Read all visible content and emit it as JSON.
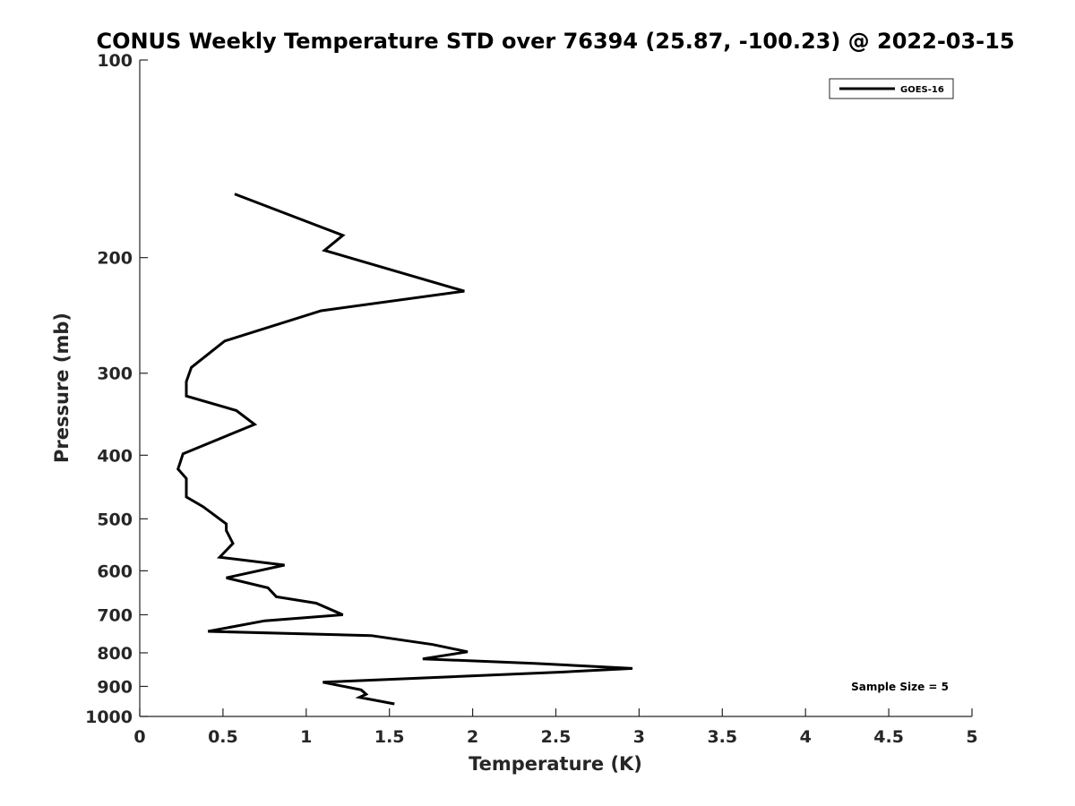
{
  "chart_data": {
    "type": "line",
    "title": "CONUS Weekly Temperature STD over 76394 (25.87, -100.23) @ 2022-03-15",
    "xlabel": "Temperature (K)",
    "ylabel": "Pressure (mb)",
    "xlim": [
      0,
      5
    ],
    "ylim": [
      1000,
      100
    ],
    "y_scale": "log",
    "y_reversed": true,
    "grid": false,
    "legend_position": "top-right",
    "x_ticks": [
      0,
      0.5,
      1,
      1.5,
      2,
      2.5,
      3,
      3.5,
      4,
      4.5,
      5
    ],
    "x_tick_labels": [
      "0",
      "0.5",
      "1",
      "1.5",
      "2",
      "2.5",
      "3",
      "3.5",
      "4",
      "4.5",
      "5"
    ],
    "y_ticks": [
      100,
      200,
      300,
      400,
      500,
      600,
      700,
      800,
      900,
      1000
    ],
    "y_tick_labels": [
      "100",
      "200",
      "300",
      "400",
      "500",
      "600",
      "700",
      "800",
      "900",
      "1000"
    ],
    "series": [
      {
        "name": "GOES-16",
        "color": "#000000",
        "x": [
          0.57,
          1.22,
          1.11,
          1.95,
          1.09,
          0.51,
          0.31,
          0.28,
          0.28,
          0.58,
          0.69,
          0.26,
          0.23,
          0.28,
          0.28,
          0.38,
          0.52,
          0.52,
          0.56,
          0.48,
          0.87,
          0.52,
          0.77,
          0.82,
          1.06,
          1.22,
          0.75,
          0.41,
          1.39,
          1.76,
          1.97,
          1.7,
          2.37,
          2.96,
          2.53,
          1.1,
          1.33,
          1.36,
          1.32,
          1.53
        ],
        "y": [
          160,
          185,
          195,
          225,
          241,
          268,
          294,
          309,
          325,
          342,
          359,
          398,
          420,
          434,
          463,
          479,
          509,
          521,
          545,
          572,
          588,
          615,
          637,
          657,
          672,
          700,
          715,
          742,
          753,
          777,
          797,
          817,
          830,
          845,
          856,
          887,
          911,
          925,
          935,
          957
        ]
      }
    ],
    "annotations": [
      "Sample Size = 5"
    ]
  }
}
